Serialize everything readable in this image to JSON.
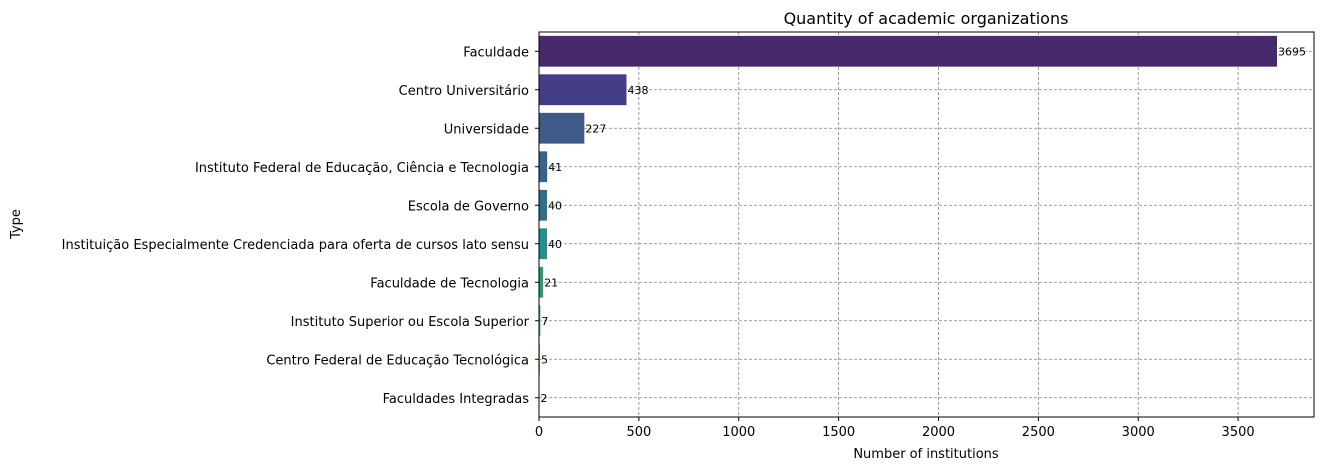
{
  "chart_data": {
    "type": "bar",
    "orientation": "horizontal",
    "title": "Quantity of academic organizations",
    "xlabel": "Number of institutions",
    "ylabel": "Type",
    "xlim": [
      0,
      3880
    ],
    "xticks": [
      0,
      500,
      1000,
      1500,
      2000,
      2500,
      3000,
      3500
    ],
    "grid": true,
    "categories": [
      "Faculdade",
      "Centro Universitário",
      "Universidade",
      "Instituto Federal de Educação, Ciência e Tecnologia",
      "Escola de Governo",
      "Instituição Especialmente Credenciada para oferta de cursos lato sensu",
      "Faculdade de Tecnologia",
      "Instituto Superior ou Escola Superior",
      "Centro Federal de Educação Tecnológica",
      "Faculdades Integradas"
    ],
    "values": [
      3695,
      438,
      227,
      41,
      40,
      40,
      21,
      7,
      5,
      2
    ],
    "colors": [
      "#482a6c",
      "#433e85",
      "#3e5a86",
      "#32648e",
      "#2e6f8e",
      "#21918c",
      "#2a9d73",
      "#3bbb6a",
      "#7ad151",
      "#c8e020"
    ]
  }
}
